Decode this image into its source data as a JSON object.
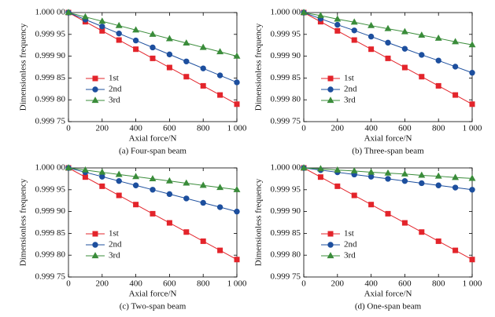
{
  "chart_data": [
    {
      "type": "line",
      "caption": "(a) Four-span beam",
      "xlabel": "Axial force/N",
      "ylabel": "Dimensionless frequency",
      "x": [
        0,
        100,
        200,
        300,
        400,
        500,
        600,
        700,
        800,
        900,
        1000
      ],
      "series": [
        {
          "name": "1st",
          "color": "#e3242b",
          "marker": "square",
          "values": [
            1.0,
            0.999979,
            0.999958,
            0.999937,
            0.999916,
            0.999895,
            0.999874,
            0.999853,
            0.999832,
            0.999811,
            0.99979
          ]
        },
        {
          "name": "2nd",
          "color": "#1d4f9e",
          "marker": "circle",
          "values": [
            1.0,
            0.999984,
            0.999968,
            0.999952,
            0.999936,
            0.99992,
            0.999904,
            0.999888,
            0.999872,
            0.999856,
            0.99984
          ]
        },
        {
          "name": "3rd",
          "color": "#3a8c3a",
          "marker": "triangle",
          "values": [
            1.0,
            0.99999,
            0.99998,
            0.99997,
            0.99996,
            0.99995,
            0.99994,
            0.99993,
            0.99992,
            0.99991,
            0.9999
          ]
        }
      ],
      "xlim": [
        0,
        1000
      ],
      "xticks": [
        0,
        200,
        400,
        600,
        800,
        {
          "value": 1000,
          "label": "1 000"
        }
      ],
      "ylim": [
        0.99975,
        1.0
      ],
      "yticks": [
        {
          "value": 0.99975,
          "label": "0.999 75"
        },
        {
          "value": 0.9998,
          "label": "0.999 80"
        },
        {
          "value": 0.99985,
          "label": "0.999 85"
        },
        {
          "value": 0.9999,
          "label": "0.999 90"
        },
        {
          "value": 0.99995,
          "label": "0.999 95"
        },
        {
          "value": 1.0,
          "label": "1.000 00"
        }
      ],
      "legend": "lower left"
    },
    {
      "type": "line",
      "caption": "(b) Three-span beam",
      "xlabel": "Axial force/N",
      "ylabel": "Dimensionless frequency",
      "x": [
        0,
        100,
        200,
        300,
        400,
        500,
        600,
        700,
        800,
        900,
        1000
      ],
      "series": [
        {
          "name": "1st",
          "color": "#e3242b",
          "marker": "square",
          "values": [
            1.0,
            0.999979,
            0.999958,
            0.999937,
            0.999916,
            0.999895,
            0.999874,
            0.999853,
            0.999832,
            0.999811,
            0.99979
          ]
        },
        {
          "name": "2nd",
          "color": "#1d4f9e",
          "marker": "circle",
          "values": [
            1.0,
            0.999986,
            0.999972,
            0.999959,
            0.999945,
            0.999931,
            0.999917,
            0.999903,
            0.99989,
            0.999876,
            0.999862
          ]
        },
        {
          "name": "3rd",
          "color": "#3a8c3a",
          "marker": "triangle",
          "values": [
            1.0,
            0.999993,
            0.999985,
            0.999978,
            0.99997,
            0.999963,
            0.999956,
            0.999948,
            0.999941,
            0.999933,
            0.999926
          ]
        }
      ],
      "xlim": [
        0,
        1000
      ],
      "xticks": [
        0,
        200,
        400,
        600,
        800,
        {
          "value": 1000,
          "label": "1 000"
        }
      ],
      "ylim": [
        0.99975,
        1.0
      ],
      "yticks": [
        {
          "value": 0.99975,
          "label": "0.999 75"
        },
        {
          "value": 0.9998,
          "label": "0.999 80"
        },
        {
          "value": 0.99985,
          "label": "0.999 85"
        },
        {
          "value": 0.9999,
          "label": "0.999 90"
        },
        {
          "value": 0.99995,
          "label": "0.999 95"
        },
        {
          "value": 1.0,
          "label": "1.000 00"
        }
      ],
      "legend": "lower left"
    },
    {
      "type": "line",
      "caption": "(c) Two-span beam",
      "xlabel": "Axial force/N",
      "ylabel": "Dimensionless frequency",
      "x": [
        0,
        100,
        200,
        300,
        400,
        500,
        600,
        700,
        800,
        900,
        1000
      ],
      "series": [
        {
          "name": "1st",
          "color": "#e3242b",
          "marker": "square",
          "values": [
            1.0,
            0.999979,
            0.999958,
            0.999937,
            0.999916,
            0.999895,
            0.999874,
            0.999853,
            0.999832,
            0.999811,
            0.99979
          ]
        },
        {
          "name": "2nd",
          "color": "#1d4f9e",
          "marker": "circle",
          "values": [
            1.0,
            0.99999,
            0.99998,
            0.99997,
            0.99996,
            0.99995,
            0.99994,
            0.99993,
            0.99992,
            0.99991,
            0.9999
          ]
        },
        {
          "name": "3rd",
          "color": "#3a8c3a",
          "marker": "triangle",
          "values": [
            1.0,
            0.999995,
            0.99999,
            0.999985,
            0.99998,
            0.999975,
            0.99997,
            0.999965,
            0.99996,
            0.999955,
            0.99995
          ]
        }
      ],
      "xlim": [
        0,
        1000
      ],
      "xticks": [
        0,
        200,
        400,
        600,
        800,
        {
          "value": 1000,
          "label": "1 000"
        }
      ],
      "ylim": [
        0.99975,
        1.0
      ],
      "yticks": [
        {
          "value": 0.99975,
          "label": "0.999 75"
        },
        {
          "value": 0.9998,
          "label": "0.999 80"
        },
        {
          "value": 0.99985,
          "label": "0.999 85"
        },
        {
          "value": 0.9999,
          "label": "0.999 90"
        },
        {
          "value": 0.99995,
          "label": "0.999 95"
        },
        {
          "value": 1.0,
          "label": "1.000 00"
        }
      ],
      "legend": "lower left"
    },
    {
      "type": "line",
      "caption": "(d) One-span beam",
      "xlabel": "Axial force/N",
      "ylabel": "Dimensionless frequency",
      "x": [
        0,
        100,
        200,
        300,
        400,
        500,
        600,
        700,
        800,
        900,
        1000
      ],
      "series": [
        {
          "name": "1st",
          "color": "#e3242b",
          "marker": "square",
          "values": [
            1.0,
            0.999979,
            0.999958,
            0.999937,
            0.999916,
            0.999895,
            0.999874,
            0.999853,
            0.999832,
            0.999811,
            0.99979
          ]
        },
        {
          "name": "2nd",
          "color": "#1d4f9e",
          "marker": "circle",
          "values": [
            1.0,
            0.999995,
            0.99999,
            0.999985,
            0.99998,
            0.999975,
            0.99997,
            0.999965,
            0.99996,
            0.999955,
            0.99995
          ]
        },
        {
          "name": "3rd",
          "color": "#3a8c3a",
          "marker": "triangle",
          "values": [
            1.0,
            0.999998,
            0.999995,
            0.999993,
            0.99999,
            0.999988,
            0.999986,
            0.999983,
            0.999981,
            0.999978,
            0.999976
          ]
        }
      ],
      "xlim": [
        0,
        1000
      ],
      "xticks": [
        0,
        200,
        400,
        600,
        800,
        {
          "value": 1000,
          "label": "1 000"
        }
      ],
      "ylim": [
        0.99975,
        1.0
      ],
      "yticks": [
        {
          "value": 0.99975,
          "label": "0.999 75"
        },
        {
          "value": 0.9998,
          "label": "0.999 80"
        },
        {
          "value": 0.99985,
          "label": "0.999 85"
        },
        {
          "value": 0.9999,
          "label": "0.999 90"
        },
        {
          "value": 0.99995,
          "label": "0.999 95"
        },
        {
          "value": 1.0,
          "label": "1.000 00"
        }
      ],
      "legend": "lower left"
    }
  ]
}
